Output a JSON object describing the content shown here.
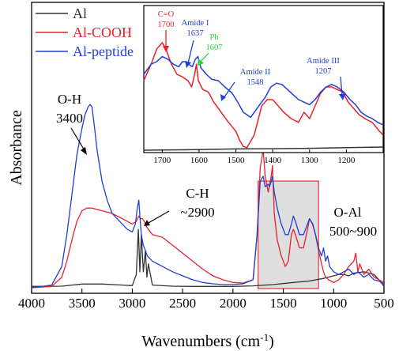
{
  "chart_data": {
    "type": "line",
    "xlabel": "Wavenumbers (cm",
    "xlabel_sup": "-1",
    "xlabel_end": ")",
    "ylabel": "Absorbance",
    "xlim": [
      4000,
      500
    ],
    "xticks": [
      "4000",
      "3500",
      "3000",
      "2500",
      "2000",
      "1500",
      "1000",
      "500"
    ],
    "xtick_values": [
      4000,
      3500,
      3000,
      2500,
      2000,
      1500,
      1000,
      500
    ],
    "ylim": [
      0,
      1
    ],
    "legend_position": "top-left",
    "series": [
      {
        "name": "Al",
        "color": "#333333",
        "x": [
          4000,
          3700,
          3600,
          3500,
          3300,
          3100,
          3000,
          2960,
          2940,
          2925,
          2910,
          2890,
          2870,
          2855,
          2840,
          2800,
          2600,
          2400,
          2200,
          2000,
          1800,
          1600,
          1400,
          1250,
          1100,
          1000,
          950,
          900,
          850,
          800,
          700,
          600,
          550,
          500
        ],
        "y": [
          0.005,
          0.006,
          0.01,
          0.014,
          0.014,
          0.01,
          0.008,
          0.05,
          0.22,
          0.06,
          0.2,
          0.06,
          0.14,
          0.04,
          0.09,
          0.01,
          0.006,
          0.005,
          0.005,
          0.005,
          0.007,
          0.012,
          0.02,
          0.025,
          0.035,
          0.045,
          0.05,
          0.05,
          0.045,
          0.055,
          0.06,
          0.05,
          0.03,
          0.005
        ]
      },
      {
        "name": "Al-COOH",
        "color": "#e8212a",
        "x": [
          4000,
          3800,
          3700,
          3650,
          3600,
          3550,
          3500,
          3450,
          3400,
          3300,
          3200,
          3100,
          3000,
          2960,
          2935,
          2920,
          2900,
          2880,
          2860,
          2800,
          2700,
          2600,
          2500,
          2400,
          2300,
          2200,
          2100,
          2000,
          1900,
          1800,
          1760,
          1730,
          1700,
          1680,
          1650,
          1620,
          1607,
          1590,
          1560,
          1520,
          1480,
          1450,
          1420,
          1400,
          1380,
          1340,
          1300,
          1260,
          1240,
          1210,
          1180,
          1150,
          1120,
          1100,
          1080,
          1050,
          1000,
          950,
          900,
          850,
          800,
          780,
          760,
          740,
          700,
          650,
          600,
          550,
          500
        ],
        "y": [
          0.0,
          0.005,
          0.04,
          0.1,
          0.18,
          0.25,
          0.29,
          0.3,
          0.3,
          0.29,
          0.28,
          0.26,
          0.24,
          0.25,
          0.27,
          0.26,
          0.26,
          0.25,
          0.23,
          0.2,
          0.19,
          0.16,
          0.13,
          0.1,
          0.07,
          0.045,
          0.03,
          0.02,
          0.018,
          0.03,
          0.2,
          0.45,
          0.52,
          0.42,
          0.36,
          0.42,
          0.46,
          0.28,
          0.18,
          0.12,
          0.08,
          0.1,
          0.2,
          0.22,
          0.2,
          0.15,
          0.15,
          0.22,
          0.26,
          0.24,
          0.2,
          0.14,
          0.09,
          0.06,
          0.04,
          0.03,
          0.02,
          0.03,
          0.05,
          0.08,
          0.1,
          0.13,
          0.06,
          0.09,
          0.05,
          0.07,
          0.04,
          0.03,
          0.02
        ]
      },
      {
        "name": "Al-peptide",
        "color": "#1f3fd6",
        "x": [
          4000,
          3800,
          3700,
          3650,
          3600,
          3550,
          3500,
          3470,
          3440,
          3420,
          3400,
          3380,
          3350,
          3300,
          3250,
          3200,
          3150,
          3100,
          3050,
          3000,
          2970,
          2950,
          2935,
          2925,
          2910,
          2890,
          2870,
          2850,
          2800,
          2700,
          2600,
          2500,
          2400,
          2300,
          2200,
          2100,
          2000,
          1900,
          1800,
          1760,
          1730,
          1700,
          1680,
          1650,
          1637,
          1620,
          1607,
          1590,
          1560,
          1548,
          1520,
          1480,
          1450,
          1420,
          1400,
          1380,
          1340,
          1300,
          1260,
          1240,
          1207,
          1180,
          1150,
          1120,
          1100,
          1080,
          1060,
          1040,
          1000,
          950,
          900,
          850,
          800,
          760,
          700,
          650,
          600,
          550,
          500
        ],
        "y": [
          0.0,
          0.01,
          0.08,
          0.2,
          0.35,
          0.5,
          0.6,
          0.65,
          0.68,
          0.69,
          0.68,
          0.62,
          0.52,
          0.4,
          0.33,
          0.28,
          0.26,
          0.24,
          0.22,
          0.21,
          0.24,
          0.3,
          0.33,
          0.27,
          0.2,
          0.16,
          0.14,
          0.12,
          0.1,
          0.08,
          0.06,
          0.045,
          0.03,
          0.02,
          0.015,
          0.012,
          0.012,
          0.015,
          0.03,
          0.2,
          0.4,
          0.42,
          0.38,
          0.39,
          0.38,
          0.4,
          0.42,
          0.36,
          0.3,
          0.28,
          0.24,
          0.2,
          0.2,
          0.24,
          0.27,
          0.25,
          0.2,
          0.2,
          0.24,
          0.26,
          0.24,
          0.2,
          0.15,
          0.12,
          0.15,
          0.1,
          0.12,
          0.08,
          0.06,
          0.05,
          0.06,
          0.07,
          0.05,
          0.06,
          0.04,
          0.05,
          0.03,
          0.025,
          0.015
        ]
      }
    ],
    "annotations": [
      {
        "line1": "O-H",
        "line2": "3400",
        "x_data": 3400
      },
      {
        "line1": "C-H",
        "line2": "~2900",
        "x_data": 2900
      },
      {
        "line1": "O-Al",
        "line2": "500~900"
      }
    ],
    "highlight_region": {
      "x_from": 1750,
      "x_to": 1150,
      "fill": "#d9d9d9",
      "stroke": "#e8212a"
    },
    "inset": {
      "xlim": [
        1750,
        1100
      ],
      "xticks": [
        "1700",
        "1600",
        "1500",
        "1400",
        "1300",
        "1200"
      ],
      "xtick_values": [
        1700,
        1600,
        1500,
        1400,
        1300,
        1200
      ],
      "annotations": [
        {
          "line1": "C=O",
          "line2": "1700",
          "color": "#e8212a",
          "x_data": 1700
        },
        {
          "line1": "Amide I",
          "line2": "1637",
          "color": "#1f3fd6",
          "x_data": 1637
        },
        {
          "line1": "Ph",
          "line2": "1607",
          "color": "#2ecc40",
          "x_data": 1607
        },
        {
          "line1": "Amide II",
          "line2": "1548",
          "color": "#1f3fd6",
          "x_data": 1548
        },
        {
          "line1": "Amide III",
          "line2": "1207",
          "color": "#1f3fd6",
          "x_data": 1207
        }
      ],
      "series": [
        {
          "color": "#333333",
          "x": [
            1750,
            1600,
            1500,
            1400,
            1300,
            1200,
            1100
          ],
          "y": [
            0.0,
            0.005,
            0.01,
            0.012,
            0.015,
            0.02,
            0.025
          ]
        },
        {
          "color": "#e8212a",
          "x": [
            1750,
            1730,
            1715,
            1700,
            1690,
            1675,
            1660,
            1645,
            1630,
            1620,
            1612,
            1607,
            1602,
            1590,
            1575,
            1560,
            1540,
            1520,
            1500,
            1490,
            1480,
            1470,
            1450,
            1430,
            1415,
            1400,
            1385,
            1370,
            1350,
            1330,
            1315,
            1300,
            1285,
            1270,
            1255,
            1240,
            1225,
            1210,
            1195,
            1180,
            1165,
            1150,
            1130,
            1110,
            1100
          ],
          "y": [
            0.55,
            0.68,
            0.8,
            0.85,
            0.8,
            0.68,
            0.6,
            0.58,
            0.55,
            0.5,
            0.6,
            0.68,
            0.55,
            0.48,
            0.46,
            0.38,
            0.3,
            0.22,
            0.15,
            0.08,
            0.03,
            0.02,
            0.12,
            0.35,
            0.4,
            0.4,
            0.35,
            0.3,
            0.25,
            0.22,
            0.3,
            0.25,
            0.35,
            0.45,
            0.5,
            0.5,
            0.48,
            0.46,
            0.38,
            0.33,
            0.28,
            0.25,
            0.22,
            0.15,
            0.12
          ]
        },
        {
          "color": "#1f3fd6",
          "x": [
            1750,
            1730,
            1715,
            1700,
            1685,
            1670,
            1655,
            1645,
            1637,
            1628,
            1618,
            1610,
            1603,
            1595,
            1580,
            1565,
            1548,
            1530,
            1510,
            1495,
            1480,
            1460,
            1440,
            1420,
            1405,
            1390,
            1375,
            1360,
            1345,
            1330,
            1315,
            1300,
            1285,
            1270,
            1255,
            1240,
            1225,
            1207,
            1190,
            1175,
            1160,
            1145,
            1130,
            1115,
            1100
          ],
          "y": [
            0.6,
            0.68,
            0.7,
            0.74,
            0.72,
            0.68,
            0.66,
            0.7,
            0.7,
            0.68,
            0.66,
            0.72,
            0.74,
            0.65,
            0.6,
            0.56,
            0.55,
            0.5,
            0.45,
            0.38,
            0.3,
            0.26,
            0.34,
            0.42,
            0.5,
            0.53,
            0.52,
            0.48,
            0.44,
            0.4,
            0.38,
            0.36,
            0.4,
            0.46,
            0.5,
            0.52,
            0.5,
            0.46,
            0.4,
            0.36,
            0.3,
            0.27,
            0.25,
            0.22,
            0.2
          ]
        }
      ]
    }
  }
}
